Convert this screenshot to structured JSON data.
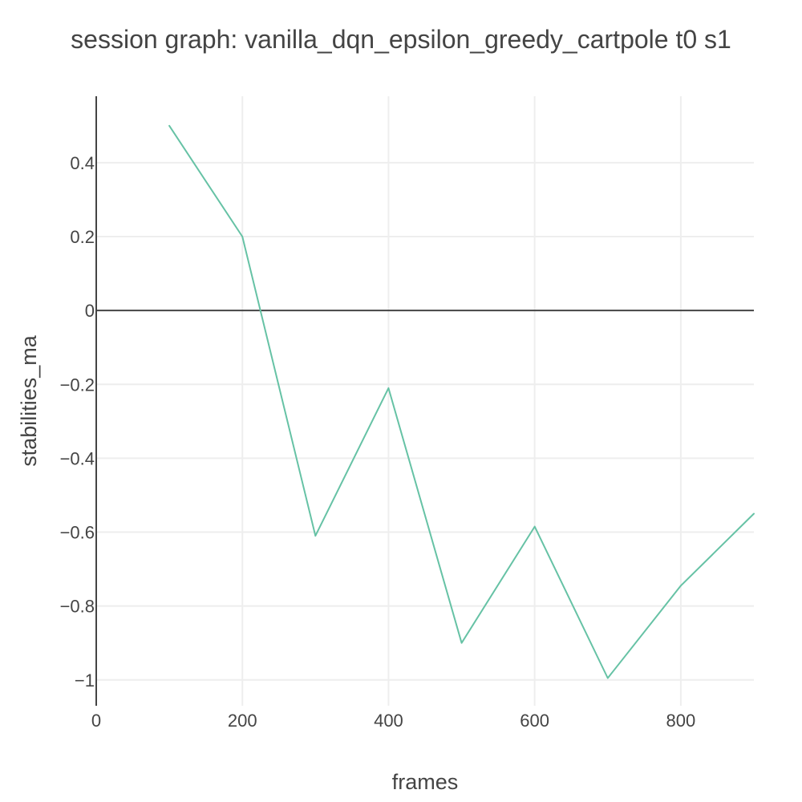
{
  "chart_data": {
    "type": "line",
    "title": "session graph: vanilla_dqn_epsilon_greedy_cartpole t0 s1",
    "xlabel": "frames",
    "ylabel": "stabilities_ma",
    "xlim": [
      0,
      900
    ],
    "ylim": [
      -1.07,
      0.58
    ],
    "x_ticks": [
      0,
      200,
      400,
      600,
      800
    ],
    "x_tick_labels": [
      "0",
      "200",
      "400",
      "600",
      "800"
    ],
    "y_ticks": [
      0.4,
      0.2,
      0,
      -0.2,
      -0.4,
      -0.6,
      -0.8,
      -1
    ],
    "y_tick_labels": [
      "0.4",
      "0.2",
      "0",
      "−0.2",
      "−0.4",
      "−0.6",
      "−0.8",
      "−1"
    ],
    "grid": true,
    "legend": "none",
    "series": [
      {
        "color": "#66c2a5",
        "x": [
          100,
          200,
          300,
          400,
          500,
          600,
          700,
          800,
          900
        ],
        "values": [
          0.5,
          0.2,
          -0.61,
          -0.21,
          -0.9,
          -0.585,
          -0.995,
          -0.745,
          -0.55
        ]
      }
    ]
  }
}
